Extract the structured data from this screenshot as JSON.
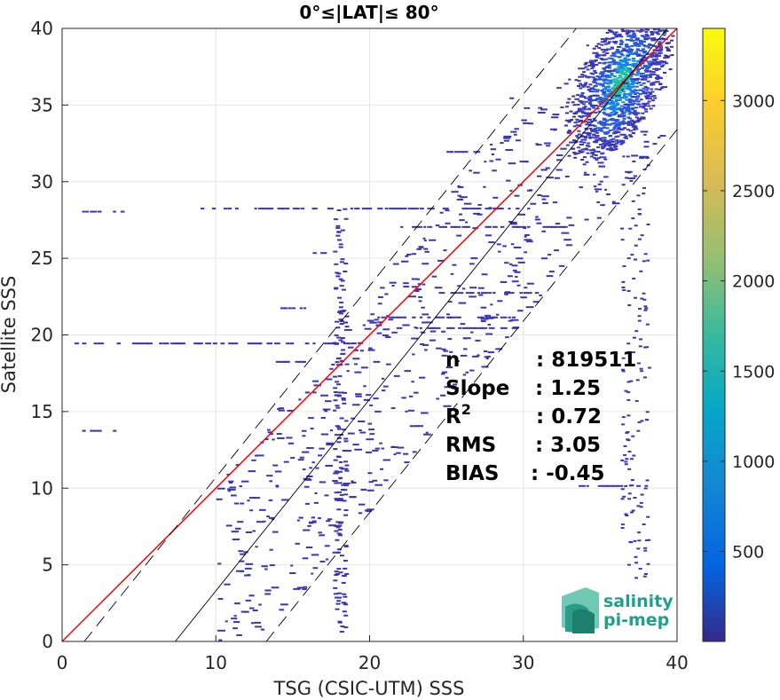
{
  "chart_data": {
    "type": "heatmap",
    "title": "0°≤|LAT|≤ 80°",
    "xlabel": "TSG (CSIC-UTM) SSS",
    "ylabel": "Satellite SSS",
    "xlim": [
      0,
      40
    ],
    "ylim": [
      0,
      40
    ],
    "x_ticks": [
      "0",
      "10",
      "20",
      "30",
      "40"
    ],
    "y_ticks": [
      "0",
      "5",
      "10",
      "15",
      "20",
      "25",
      "30",
      "35",
      "40"
    ],
    "grid": true,
    "colormap": "parula",
    "colorbar": {
      "min": 1,
      "max": 3400,
      "ticks": [
        "500",
        "1000",
        "1500",
        "2000",
        "2500",
        "3000"
      ]
    },
    "density_peak": {
      "x": 36.2,
      "y": 36.5
    },
    "lines": [
      {
        "role": "identity",
        "slope": 1,
        "intercept": 0,
        "color": "#ff0000"
      },
      {
        "role": "regression",
        "slope": 1.25,
        "intercept": -9.2,
        "color": "#000000"
      },
      {
        "role": "upper-bound",
        "slope": 1.25,
        "intercept": -1.8,
        "color": "#000000",
        "dash": true
      },
      {
        "role": "lower-bound",
        "slope": 1.25,
        "intercept": -16.6,
        "color": "#000000",
        "dash": true
      }
    ],
    "horizontal_streaks": [
      {
        "y": 28.1,
        "x": [
          1.3,
          4.1
        ]
      },
      {
        "y": 28.3,
        "x": [
          9.0,
          30.6
        ]
      },
      {
        "y": 27.1,
        "x": [
          22.0,
          33.0
        ]
      },
      {
        "y": 25.4,
        "x": [
          15.8,
          17.0
        ]
      },
      {
        "y": 22.8,
        "x": [
          24.5,
          31.0
        ]
      },
      {
        "y": 21.8,
        "x": [
          14.2,
          16.2
        ]
      },
      {
        "y": 21.2,
        "x": [
          20.5,
          30.0
        ]
      },
      {
        "y": 20.5,
        "x": [
          21.0,
          29.5
        ]
      },
      {
        "y": 19.5,
        "x": [
          0.8,
          20.0
        ]
      },
      {
        "y": 18.3,
        "x": [
          13.9,
          15.7
        ]
      },
      {
        "y": 16.3,
        "x": [
          15.8,
          17.0
        ]
      },
      {
        "y": 13.8,
        "x": [
          1.3,
          4.1
        ]
      },
      {
        "y": 12.1,
        "x": [
          0.6,
          1.0
        ]
      },
      {
        "y": 10.2,
        "x": [
          33.6,
          37.8
        ]
      },
      {
        "y": 32.0,
        "x": [
          24.5,
          27.0
        ]
      },
      {
        "y": 35.5,
        "x": [
          28.6,
          29.2
        ]
      }
    ],
    "stats": [
      {
        "label": "n",
        "value": ": 819511"
      },
      {
        "label": "Slope",
        "value": ": 1.25"
      },
      {
        "label": "R2",
        "value": ": 0.72"
      },
      {
        "label": "RMS",
        "value": ": 3.05"
      },
      {
        "label": "BIAS",
        "value": ": -0.45"
      }
    ]
  },
  "logo": {
    "line1": "salinity",
    "line2": "pi-mep"
  }
}
